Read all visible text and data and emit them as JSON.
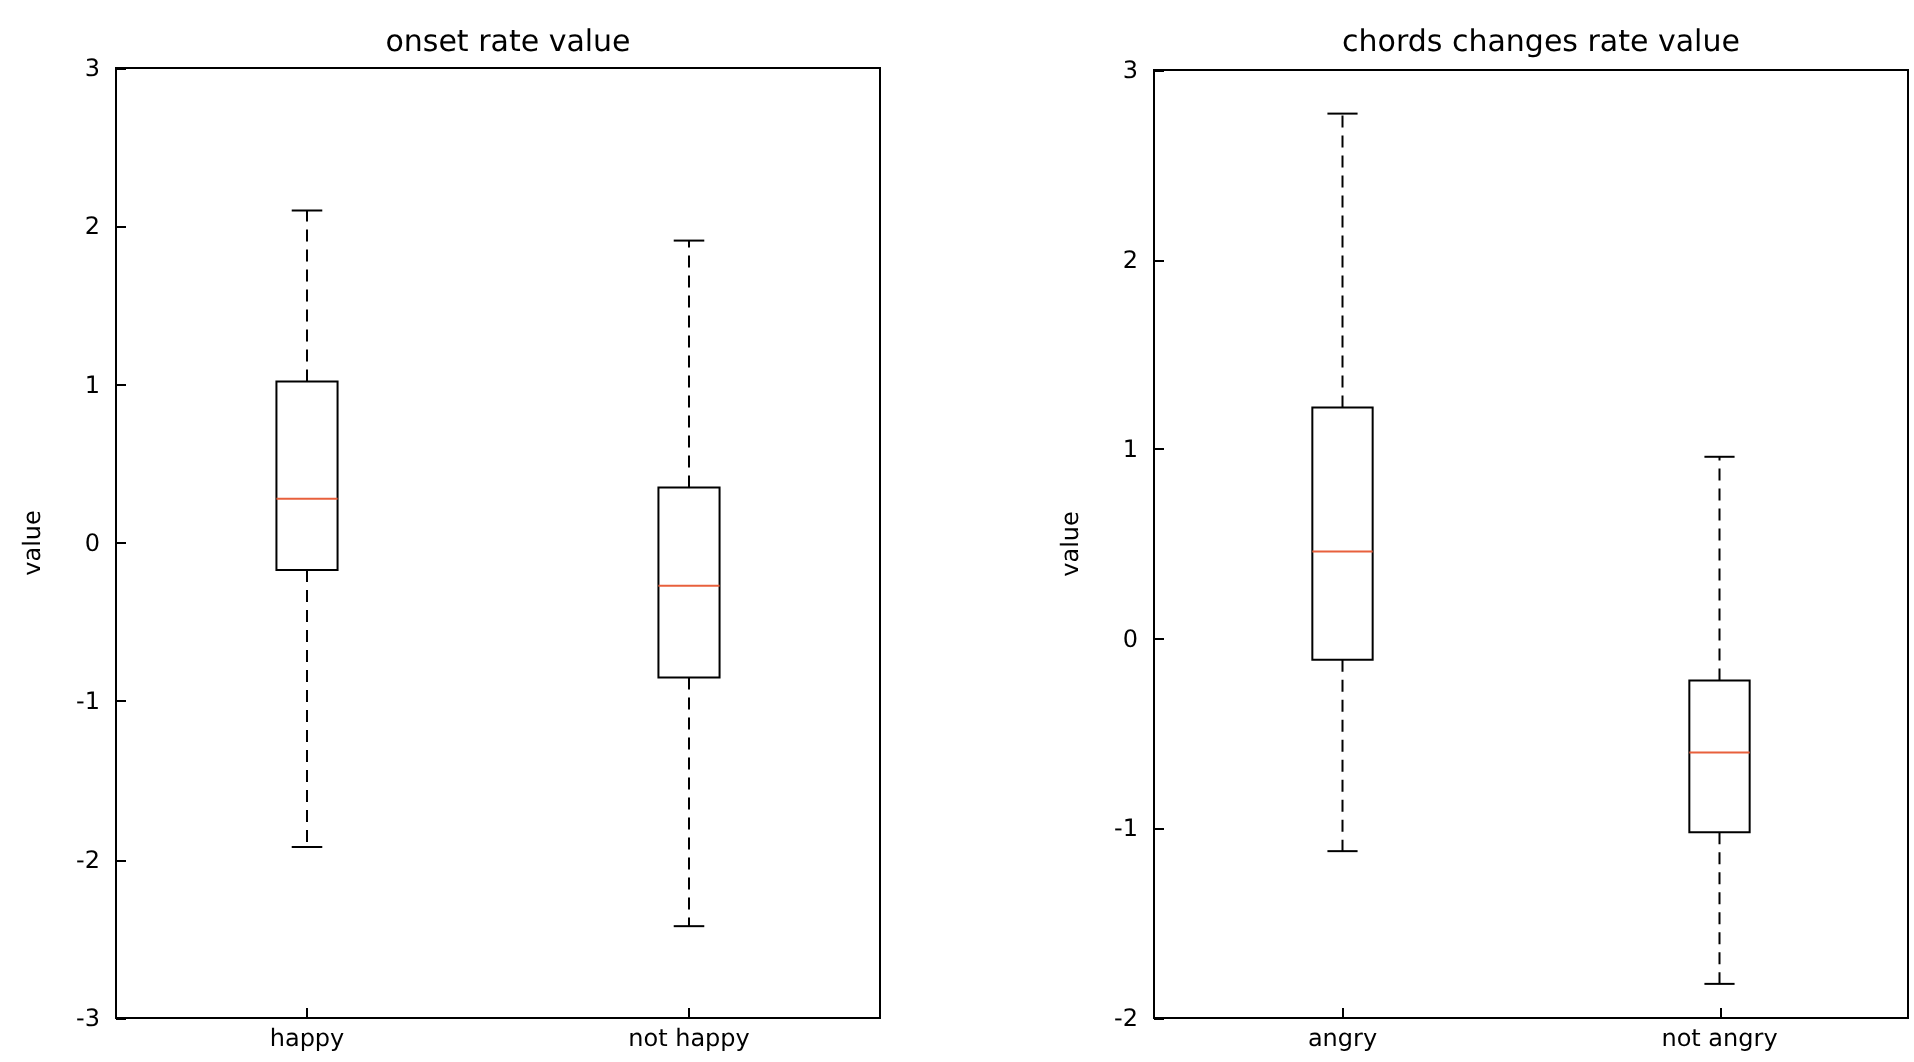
{
  "chart_data": [
    {
      "type": "box",
      "title": "onset rate value",
      "ylabel": "value",
      "categories": [
        "happy",
        "not happy"
      ],
      "ylim": [
        -3,
        3
      ],
      "yticks": [
        -3,
        -2,
        -1,
        0,
        1,
        2,
        3
      ],
      "grid": false,
      "color": "#000000",
      "line_style": "dashed",
      "boxes": [
        {
          "low": -1.92,
          "q1": -0.17,
          "median": 0.28,
          "q3": 1.02,
          "high": 2.1
        },
        {
          "low": -2.42,
          "q1": -0.85,
          "median": -0.27,
          "q3": 0.35,
          "high": 1.91
        }
      ]
    },
    {
      "type": "box",
      "title": "chords changes rate value",
      "ylabel": "value",
      "categories": [
        "angry",
        "not angry"
      ],
      "ylim": [
        -2,
        3
      ],
      "yticks": [
        -2,
        -1,
        0,
        1,
        2,
        3
      ],
      "grid": false,
      "color": "#000000",
      "line_style": "dashed",
      "boxes": [
        {
          "low": -1.12,
          "q1": -0.11,
          "median": 0.46,
          "q3": 1.22,
          "high": 2.77
        },
        {
          "low": -1.82,
          "q1": -1.02,
          "median": -0.6,
          "q3": -0.22,
          "high": 0.96
        }
      ]
    }
  ]
}
